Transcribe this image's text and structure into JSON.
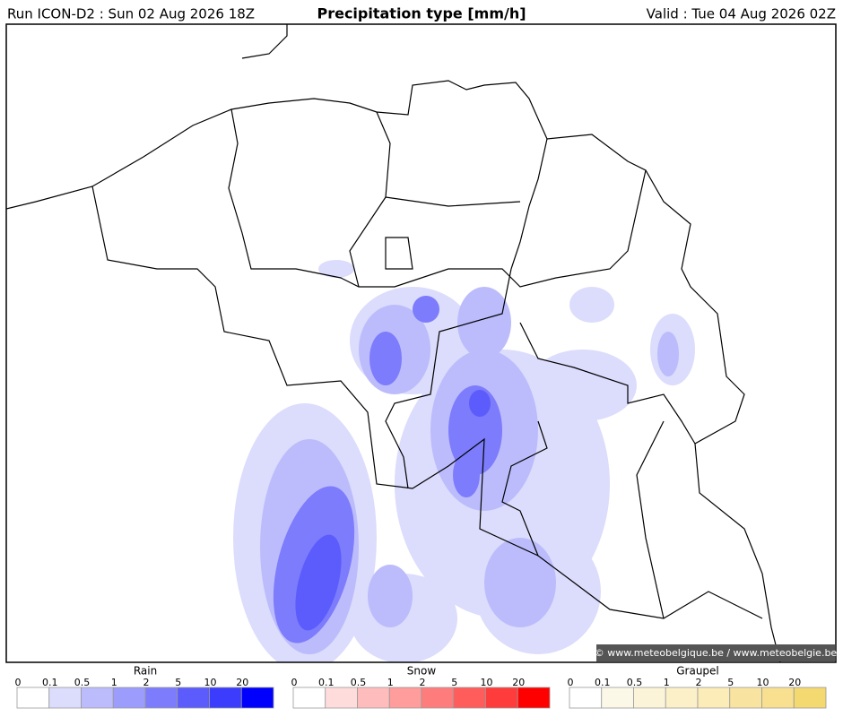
{
  "header": {
    "run": "Run ICON-D2 : Sun 02 Aug 2026 18Z",
    "title": "Precipitation type [mm/h]",
    "valid": "Valid : Tue 04 Aug 2026 02Z"
  },
  "map": {
    "credit": "© www.meteobelgique.be / www.meteobelgie.be"
  },
  "legend": [
    {
      "title": "Rain",
      "ticks": [
        "0",
        "0.1",
        "0.5",
        "1",
        "2",
        "5",
        "10",
        "20"
      ],
      "colors": [
        "#ffffff",
        "#dcdcfc",
        "#bcbcfc",
        "#9c9cfc",
        "#7c7cfc",
        "#5c5cfc",
        "#3c3cfc",
        "#0000fc"
      ]
    },
    {
      "title": "Snow",
      "ticks": [
        "0",
        "0.1",
        "0.5",
        "1",
        "2",
        "5",
        "10",
        "20"
      ],
      "colors": [
        "#ffffff",
        "#ffdcdc",
        "#ffbcbc",
        "#ff9c9c",
        "#ff7c7c",
        "#ff5c5c",
        "#ff3c3c",
        "#ff0000"
      ]
    },
    {
      "title": "Graupel",
      "ticks": [
        "0",
        "0.1",
        "0.5",
        "1",
        "2",
        "5",
        "10",
        "20"
      ],
      "colors": [
        "#ffffff",
        "#fcf8e8",
        "#fcf4d8",
        "#fcf0c8",
        "#fcecb8",
        "#f8e4a0",
        "#f8e090",
        "#f4d870"
      ]
    }
  ]
}
